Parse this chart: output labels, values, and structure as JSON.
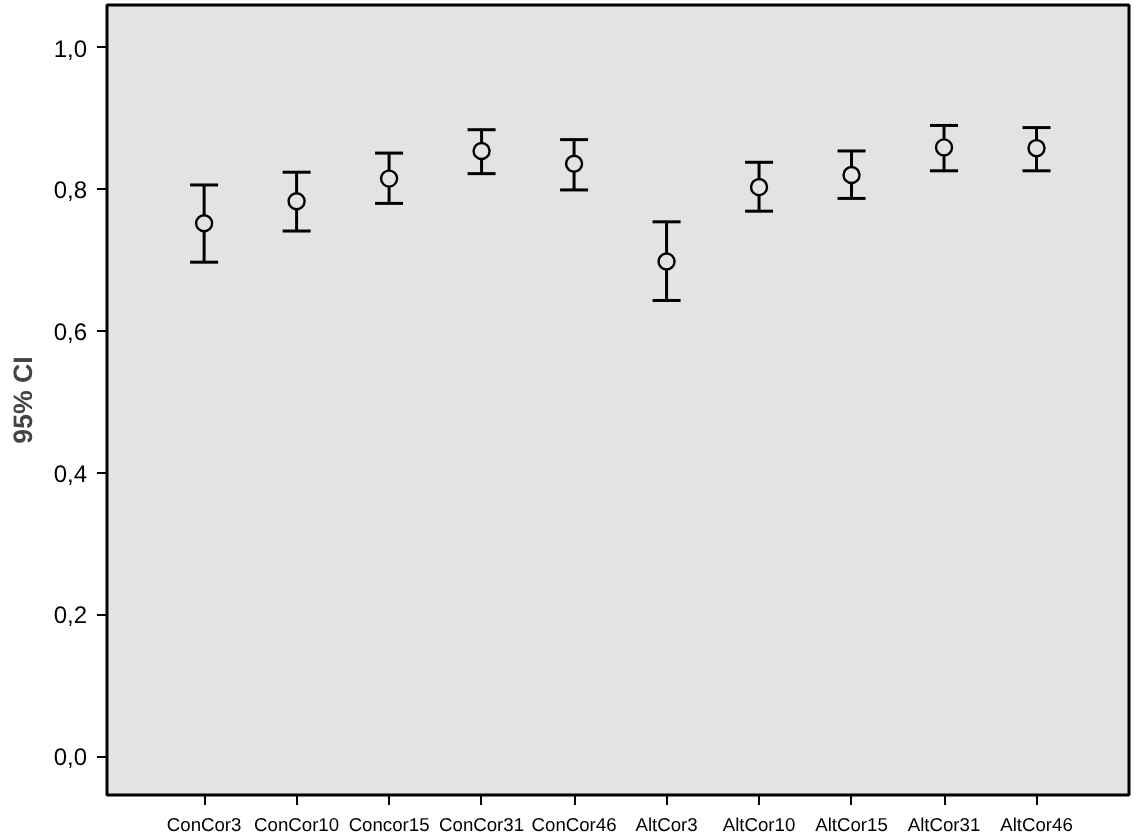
{
  "chart_data": {
    "type": "scatter",
    "ylabel": "95% CI",
    "categories": [
      "ConCor3",
      "ConCor10",
      "Concor15",
      "ConCor31",
      "ConCor46",
      "AltCor3",
      "AltCor10",
      "AltCor15",
      "AltCor31",
      "AltCor46"
    ],
    "values": [
      0.752,
      0.783,
      0.815,
      0.854,
      0.836,
      0.698,
      0.803,
      0.82,
      0.859,
      0.858
    ],
    "errors": [
      [
        0.697,
        0.806
      ],
      [
        0.741,
        0.824
      ],
      [
        0.78,
        0.851
      ],
      [
        0.822,
        0.884
      ],
      [
        0.799,
        0.87
      ],
      [
        0.643,
        0.754
      ],
      [
        0.769,
        0.838
      ],
      [
        0.787,
        0.854
      ],
      [
        0.826,
        0.89
      ],
      [
        0.826,
        0.887
      ]
    ],
    "color": "#000000",
    "marker": "circle",
    "grid": false,
    "ylim": [
      -0.055,
      1.06
    ],
    "yticks": [
      {
        "value": 0,
        "label": "0,0"
      },
      {
        "value": 0.2,
        "label": "0,2"
      },
      {
        "value": 0.4,
        "label": "0,4"
      },
      {
        "value": 0.6,
        "label": "0,6"
      },
      {
        "value": 0.8,
        "label": "0,8"
      },
      {
        "value": 1,
        "label": "1,0"
      }
    ]
  }
}
